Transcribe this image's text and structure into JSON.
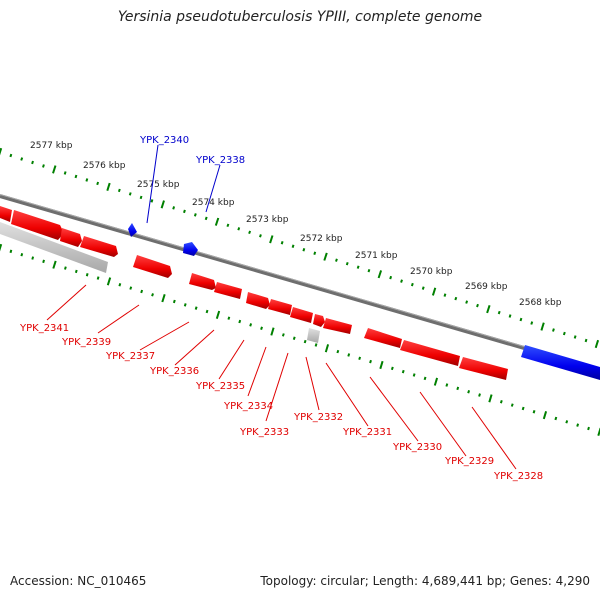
{
  "title": "Yersinia pseudotuberculosis YPIII, complete genome",
  "footer": {
    "accession": "Accession: NC_010465",
    "topology": "Topology: circular; Length: 4,689,441 bp; Genes: 4,290"
  },
  "kbp_labels": [
    "2577 kbp",
    "2576 kbp",
    "2575 kbp",
    "2574 kbp",
    "2573 kbp",
    "2572 kbp",
    "2571 kbp",
    "2570 kbp",
    "2569 kbp",
    "2568 kbp"
  ],
  "colors": {
    "forward_gene": "#0000ff",
    "reverse_gene": "#ff0000",
    "pseudo_gene": "#c0c0c0",
    "backbone": "#808080",
    "ticks": "#008000"
  },
  "genes": [
    {
      "label": "YPK_2341",
      "strand": "reverse"
    },
    {
      "label": "YPK_2340",
      "strand": "forward"
    },
    {
      "label": "YPK_2339",
      "strand": "reverse"
    },
    {
      "label": "YPK_2338",
      "strand": "forward"
    },
    {
      "label": "YPK_2337",
      "strand": "reverse"
    },
    {
      "label": "YPK_2336",
      "strand": "reverse"
    },
    {
      "label": "YPK_2335",
      "strand": "reverse"
    },
    {
      "label": "YPK_2334",
      "strand": "reverse"
    },
    {
      "label": "YPK_2333",
      "strand": "reverse"
    },
    {
      "label": "YPK_2332",
      "strand": "reverse"
    },
    {
      "label": "YPK_2331",
      "strand": "reverse"
    },
    {
      "label": "YPK_2330",
      "strand": "reverse"
    },
    {
      "label": "YPK_2329",
      "strand": "reverse"
    },
    {
      "label": "YPK_2328",
      "strand": "reverse"
    }
  ]
}
